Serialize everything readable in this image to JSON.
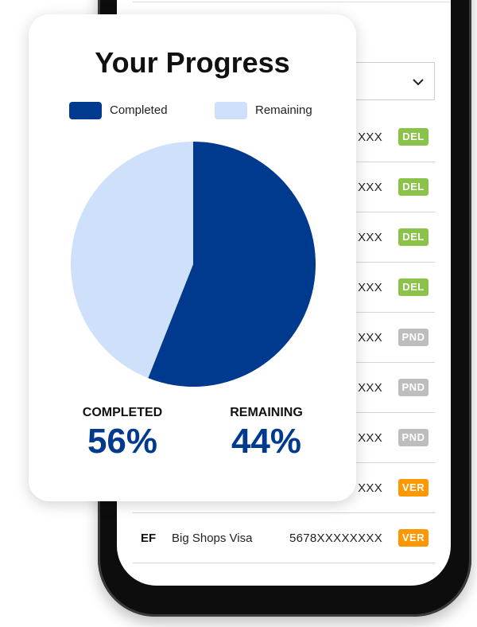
{
  "colors": {
    "completed": "#003a8f",
    "remaining": "#cfe0fb",
    "badge_del": "#8bc34a",
    "badge_pnd": "#bdbdbd",
    "badge_ver": "#ff9800"
  },
  "list": {
    "rows": [
      {
        "code": "",
        "name": "",
        "number": "XXX",
        "status": "DEL"
      },
      {
        "code": "",
        "name": "",
        "number": "XXX",
        "status": "DEL"
      },
      {
        "code": "",
        "name": "",
        "number": "XXX",
        "status": "DEL"
      },
      {
        "code": "",
        "name": "",
        "number": "XXX",
        "status": "DEL"
      },
      {
        "code": "",
        "name": "",
        "number": "XXX",
        "status": "PND"
      },
      {
        "code": "",
        "name": "",
        "number": "XXX",
        "status": "PND"
      },
      {
        "code": "",
        "name": "",
        "number": "XXX",
        "status": "PND"
      },
      {
        "code": "",
        "name": "",
        "number": "XXX",
        "status": "VER"
      },
      {
        "code": "EF",
        "name": "Big Shops Visa",
        "number": "5678XXXXXXXX",
        "status": "VER"
      }
    ]
  },
  "card": {
    "title": "Your Progress",
    "legend": {
      "completed": "Completed",
      "remaining": "Remaining"
    },
    "stats": {
      "completed_label": "COMPLETED",
      "completed_value": "56%",
      "remaining_label": "REMAINING",
      "remaining_value": "44%"
    }
  },
  "chart_data": {
    "type": "pie",
    "categories": [
      "Completed",
      "Remaining"
    ],
    "values": [
      56,
      44
    ],
    "title": "Your Progress"
  }
}
